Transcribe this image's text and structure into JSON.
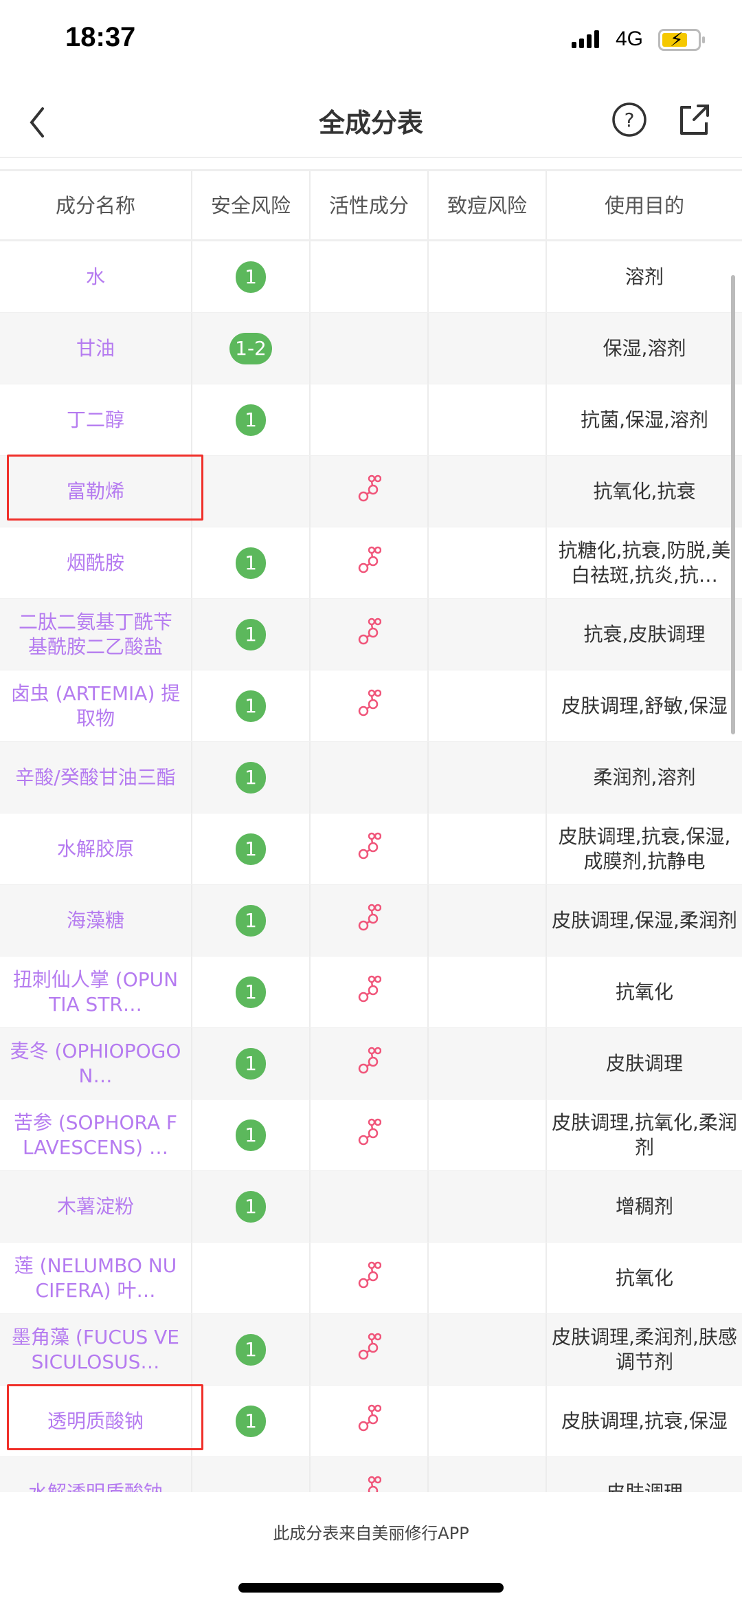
{
  "status": {
    "time": "18:37",
    "network": "4G",
    "battery_charging": true
  },
  "nav": {
    "title": "全成分表",
    "back_icon": "chevron-left-icon",
    "help_icon": "question-circle-icon",
    "share_icon": "share-icon"
  },
  "colors": {
    "name": "#b57bf0",
    "safety_badge": "#5cb85c",
    "active_icon": "#f0557a",
    "highlight": "#f0302a"
  },
  "table": {
    "headers": [
      "成分名称",
      "安全风险",
      "活性成分",
      "致痘风险",
      "使用目的"
    ],
    "rows": [
      {
        "name": "水",
        "risk": "1",
        "active": false,
        "acne": "",
        "purpose": "溶剂"
      },
      {
        "name": "甘油",
        "risk": "1-2",
        "active": false,
        "acne": "",
        "purpose": "保湿,溶剂"
      },
      {
        "name": "丁二醇",
        "risk": "1",
        "active": false,
        "acne": "",
        "purpose": "抗菌,保湿,溶剂"
      },
      {
        "name": "富勒烯",
        "risk": "",
        "active": true,
        "acne": "",
        "purpose": "抗氧化,抗衰",
        "highlighted": true
      },
      {
        "name": "烟酰胺",
        "risk": "1",
        "active": true,
        "acne": "",
        "purpose": "抗糖化,抗衰,防脱,美白祛斑,抗炎,抗…"
      },
      {
        "name": "二肽二氨基丁酰苄基酰胺二乙酸盐",
        "risk": "1",
        "active": true,
        "acne": "",
        "purpose": "抗衰,皮肤调理"
      },
      {
        "name": "卤虫 (ARTEMIA) 提取物",
        "risk": "1",
        "active": true,
        "acne": "",
        "purpose": "皮肤调理,舒敏,保湿"
      },
      {
        "name": "辛酸/癸酸甘油三酯",
        "risk": "1",
        "active": false,
        "acne": "",
        "purpose": "柔润剂,溶剂"
      },
      {
        "name": "水解胶原",
        "risk": "1",
        "active": true,
        "acne": "",
        "purpose": "皮肤调理,抗衰,保湿,成膜剂,抗静电"
      },
      {
        "name": "海藻糖",
        "risk": "1",
        "active": true,
        "acne": "",
        "purpose": "皮肤调理,保湿,柔润剂"
      },
      {
        "name": "扭刺仙人掌 (OPUNTIA STR…",
        "risk": "1",
        "active": true,
        "acne": "",
        "purpose": "抗氧化"
      },
      {
        "name": "麦冬 (OPHIOPOGON…",
        "risk": "1",
        "active": true,
        "acne": "",
        "purpose": "皮肤调理"
      },
      {
        "name": "苦参 (SOPHORA FLAVESCENS) …",
        "risk": "1",
        "active": true,
        "acne": "",
        "purpose": "皮肤调理,抗氧化,柔润剂"
      },
      {
        "name": "木薯淀粉",
        "risk": "1",
        "active": false,
        "acne": "",
        "purpose": "增稠剂"
      },
      {
        "name": "莲 (NELUMBO NUCIFERA) 叶…",
        "risk": "",
        "active": true,
        "acne": "",
        "purpose": "抗氧化"
      },
      {
        "name": "墨角藻 (FUCUS VESICULOSUS…",
        "risk": "1",
        "active": true,
        "acne": "",
        "purpose": "皮肤调理,柔润剂,肤感调节剂"
      },
      {
        "name": "透明质酸钠",
        "risk": "1",
        "active": true,
        "acne": "",
        "purpose": "皮肤调理,抗衰,保湿",
        "highlighted": true
      },
      {
        "name": "水解透明质酸钠",
        "risk": "",
        "active": true,
        "acne": "",
        "purpose": "皮肤调理"
      }
    ]
  },
  "footer": {
    "text": "此成分表来自美丽修行APP"
  }
}
